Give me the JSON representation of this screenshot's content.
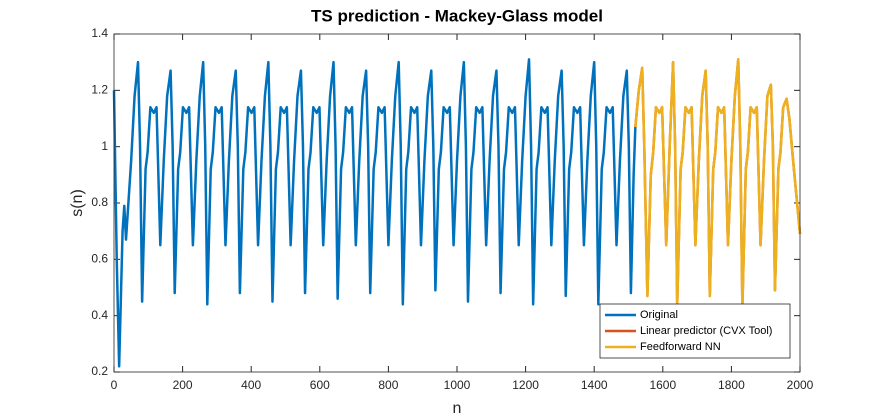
{
  "chart_data": {
    "type": "line",
    "title": "TS prediction - Mackey-Glass model",
    "x_label": "n",
    "y_label": "s(n)",
    "xlim": [
      0,
      2000
    ],
    "xticks": [
      0,
      200,
      400,
      600,
      800,
      1000,
      1200,
      1400,
      1600,
      1800,
      2000
    ],
    "ylim": [
      0.2,
      1.4
    ],
    "yticks": [
      0.2,
      0.4,
      0.6,
      0.8,
      1,
      1.2,
      1.4
    ],
    "grid": false,
    "legend": "lower right",
    "series": [
      {
        "name": "Original",
        "color": "#0072bd",
        "x": [
          0,
          8,
          15,
          25,
          30,
          35,
          50,
          60,
          70,
          76,
          82,
          92,
          98,
          106,
          116,
          124,
          135,
          145,
          155,
          165,
          171,
          177,
          187,
          193,
          201,
          211,
          219,
          230,
          240,
          250,
          260,
          266,
          272,
          282,
          288,
          296,
          306,
          314,
          325,
          335,
          345,
          355,
          361,
          367,
          377,
          383,
          391,
          401,
          409,
          420,
          430,
          440,
          450,
          456,
          462,
          472,
          478,
          486,
          496,
          504,
          515,
          525,
          535,
          545,
          551,
          557,
          567,
          573,
          581,
          591,
          599,
          610,
          620,
          630,
          640,
          646,
          652,
          662,
          668,
          676,
          686,
          694,
          705,
          715,
          725,
          735,
          741,
          747,
          757,
          763,
          771,
          781,
          789,
          800,
          810,
          820,
          830,
          836,
          842,
          852,
          858,
          866,
          876,
          884,
          895,
          905,
          915,
          925,
          931,
          937,
          947,
          953,
          961,
          971,
          979,
          990,
          1000,
          1010,
          1020,
          1026,
          1032,
          1042,
          1048,
          1056,
          1066,
          1074,
          1085,
          1095,
          1105,
          1115,
          1121,
          1127,
          1137,
          1143,
          1151,
          1161,
          1169,
          1180,
          1190,
          1200,
          1210,
          1216,
          1222,
          1232,
          1238,
          1246,
          1256,
          1264,
          1275,
          1285,
          1295,
          1305,
          1311,
          1317,
          1327,
          1333,
          1341,
          1351,
          1359,
          1370,
          1380,
          1390,
          1400,
          1406,
          1412,
          1422,
          1428,
          1436,
          1446,
          1454,
          1465,
          1475,
          1485,
          1495,
          1501,
          1507,
          1515,
          1520
        ],
        "values": [
          1.2,
          0.6,
          0.22,
          0.7,
          0.79,
          0.67,
          0.95,
          1.18,
          1.3,
          1,
          0.45,
          0.92,
          0.98,
          1.14,
          1.12,
          1.14,
          0.65,
          0.95,
          1.18,
          1.27,
          1,
          0.48,
          0.92,
          0.98,
          1.14,
          1.12,
          1.14,
          0.65,
          0.95,
          1.18,
          1.3,
          1,
          0.44,
          0.92,
          0.98,
          1.14,
          1.12,
          1.14,
          0.65,
          0.95,
          1.18,
          1.27,
          1,
          0.48,
          0.92,
          0.98,
          1.14,
          1.12,
          1.14,
          0.65,
          0.95,
          1.18,
          1.3,
          1,
          0.45,
          0.92,
          0.98,
          1.14,
          1.12,
          1.14,
          0.65,
          0.95,
          1.18,
          1.27,
          1,
          0.48,
          0.92,
          0.98,
          1.14,
          1.12,
          1.14,
          0.65,
          0.95,
          1.18,
          1.3,
          1,
          0.46,
          0.92,
          0.98,
          1.14,
          1.12,
          1.14,
          0.65,
          0.95,
          1.18,
          1.27,
          1,
          0.48,
          0.92,
          0.98,
          1.14,
          1.12,
          1.14,
          0.65,
          0.95,
          1.18,
          1.3,
          1,
          0.44,
          0.92,
          0.98,
          1.14,
          1.12,
          1.14,
          0.65,
          0.95,
          1.18,
          1.27,
          1,
          0.49,
          0.92,
          0.98,
          1.14,
          1.12,
          1.14,
          0.65,
          0.95,
          1.18,
          1.3,
          1,
          0.45,
          0.92,
          0.98,
          1.14,
          1.12,
          1.14,
          0.65,
          0.95,
          1.18,
          1.27,
          1,
          0.48,
          0.92,
          0.98,
          1.14,
          1.12,
          1.14,
          0.65,
          0.95,
          1.18,
          1.31,
          1,
          0.44,
          0.92,
          0.98,
          1.14,
          1.12,
          1.14,
          0.65,
          0.95,
          1.18,
          1.27,
          1,
          0.47,
          0.92,
          0.98,
          1.14,
          1.12,
          1.14,
          0.65,
          0.95,
          1.18,
          1.3,
          1,
          0.44,
          0.92,
          0.98,
          1.14,
          1.12,
          1.14,
          0.65,
          0.95,
          1.18,
          1.27,
          1,
          0.48,
          0.9,
          1.07
        ]
      },
      {
        "name": "Linear predictor (CVX Tool)",
        "color": "#d95319",
        "x": [
          1520,
          1530,
          1540,
          1546,
          1555,
          1565,
          1572,
          1580,
          1590,
          1598,
          1610,
          1620,
          1630,
          1636,
          1642,
          1652,
          1658,
          1666,
          1676,
          1684,
          1695,
          1705,
          1715,
          1725,
          1731,
          1737,
          1747,
          1753,
          1761,
          1771,
          1779,
          1790,
          1800,
          1810,
          1820,
          1826,
          1832,
          1842,
          1848,
          1856,
          1866,
          1874,
          1885,
          1895,
          1905,
          1915,
          1921,
          1927,
          1937,
          1943,
          1951,
          1961,
          1969,
          1980,
          2000
        ],
        "values": [
          1.07,
          1.2,
          1.28,
          1,
          0.47,
          0.9,
          0.98,
          1.14,
          1.12,
          1.14,
          0.65,
          1,
          1.3,
          1,
          0.44,
          0.92,
          0.98,
          1.14,
          1.12,
          1.14,
          0.65,
          0.95,
          1.18,
          1.27,
          1,
          0.47,
          0.92,
          0.98,
          1.14,
          1.12,
          1.14,
          0.65,
          0.95,
          1.18,
          1.31,
          1,
          0.43,
          0.92,
          0.98,
          1.14,
          1.12,
          1.14,
          0.65,
          0.95,
          1.18,
          1.22,
          1,
          0.49,
          0.92,
          0.98,
          1.14,
          1.17,
          1.1,
          0.95,
          0.69
        ]
      },
      {
        "name": "Feedforward NN",
        "color": "#edb120",
        "x": [
          1520,
          1530,
          1540,
          1546,
          1555,
          1565,
          1572,
          1580,
          1590,
          1598,
          1610,
          1620,
          1630,
          1636,
          1642,
          1652,
          1658,
          1666,
          1676,
          1684,
          1695,
          1705,
          1715,
          1725,
          1731,
          1737,
          1747,
          1753,
          1761,
          1771,
          1779,
          1790,
          1800,
          1810,
          1820,
          1826,
          1832,
          1842,
          1848,
          1856,
          1866,
          1874,
          1885,
          1895,
          1905,
          1915,
          1921,
          1927,
          1937,
          1943,
          1951,
          1961,
          1969,
          1980,
          2000
        ],
        "values": [
          1.07,
          1.2,
          1.28,
          1,
          0.47,
          0.9,
          0.98,
          1.14,
          1.12,
          1.14,
          0.65,
          1,
          1.3,
          1,
          0.44,
          0.92,
          0.98,
          1.14,
          1.12,
          1.14,
          0.65,
          0.95,
          1.18,
          1.27,
          1,
          0.47,
          0.92,
          0.98,
          1.14,
          1.12,
          1.14,
          0.65,
          0.95,
          1.18,
          1.31,
          1,
          0.43,
          0.92,
          0.98,
          1.14,
          1.12,
          1.14,
          0.65,
          0.95,
          1.18,
          1.22,
          1,
          0.49,
          0.92,
          0.98,
          1.14,
          1.17,
          1.1,
          0.95,
          0.69
        ]
      }
    ]
  }
}
